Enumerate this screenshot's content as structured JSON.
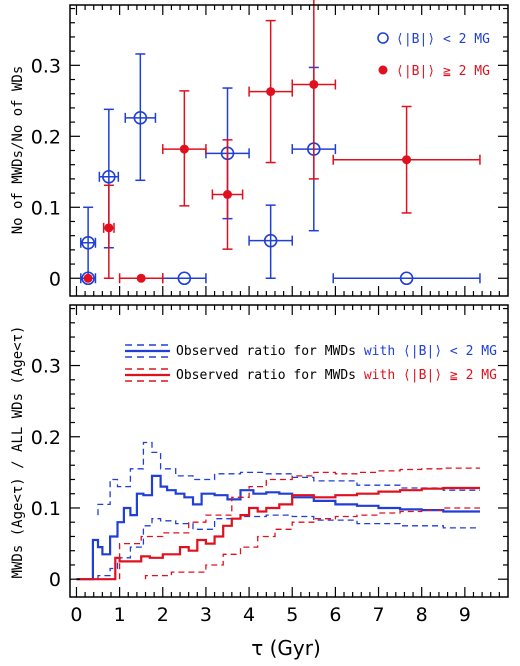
{
  "colors": {
    "blue": "#1f3fd6",
    "red": "#e0101e",
    "axis": "#000000"
  },
  "chart_data": [
    {
      "type": "scatter",
      "ylabel": "No of MWDs/No of WDs",
      "xlim": [
        -0.15,
        10.0
      ],
      "ylim": [
        -0.025,
        0.385
      ],
      "yticks": [
        0,
        0.1,
        0.2,
        0.3
      ],
      "ytick_labels": [
        "0",
        "0.1",
        "0.2",
        "0.3"
      ],
      "legend_placement": "top-right",
      "legend": [
        {
          "label": "⟨|B|⟩ < 2 MG",
          "color": "#1f3fd6",
          "marker": "open-circle"
        },
        {
          "label": "⟨|B|⟩ ≧ 2 MG",
          "color": "#e0101e",
          "marker": "filled-circle"
        }
      ],
      "series": [
        {
          "name": "⟨|B|⟩ < 2 MG",
          "color": "#1f3fd6",
          "marker": "open",
          "points": [
            {
              "x": 0.27,
              "y": 0.0,
              "xerr": [
                0.17,
                0.17
              ],
              "yerr": [
                0.0,
                0.0
              ]
            },
            {
              "x": 0.27,
              "y": 0.05,
              "xerr": [
                0.17,
                0.17
              ],
              "yerr": [
                0.05,
                0.05
              ]
            },
            {
              "x": 0.75,
              "y": 0.143,
              "xerr": [
                0.22,
                0.22
              ],
              "yerr": [
                0.1,
                0.095
              ]
            },
            {
              "x": 1.48,
              "y": 0.226,
              "xerr": [
                0.35,
                0.35
              ],
              "yerr": [
                0.088,
                0.09
              ]
            },
            {
              "x": 2.5,
              "y": 0.0,
              "xerr": [
                0.5,
                0.5
              ],
              "yerr": [
                0.0,
                0.0
              ]
            },
            {
              "x": 3.5,
              "y": 0.176,
              "xerr": [
                0.5,
                0.5
              ],
              "yerr": [
                0.092,
                0.092
              ]
            },
            {
              "x": 4.5,
              "y": 0.053,
              "xerr": [
                0.5,
                0.5
              ],
              "yerr": [
                0.053,
                0.05
              ]
            },
            {
              "x": 5.5,
              "y": 0.182,
              "xerr": [
                0.5,
                0.5
              ],
              "yerr": [
                0.115,
                0.115
              ]
            },
            {
              "x": 7.65,
              "y": 0.0,
              "xerr": [
                1.7,
                1.7
              ],
              "yerr": [
                0.0,
                0.0
              ]
            }
          ]
        },
        {
          "name": "⟨|B|⟩ ≧ 2 MG",
          "color": "#e0101e",
          "marker": "filled",
          "points": [
            {
              "x": 0.27,
              "y": 0.0,
              "xerr": [
                0.0,
                0.0
              ],
              "yerr": [
                0.0,
                0.0
              ]
            },
            {
              "x": 0.75,
              "y": 0.071,
              "xerr": [
                0.12,
                0.12
              ],
              "yerr": [
                0.071,
                0.06
              ]
            },
            {
              "x": 1.5,
              "y": 0.0,
              "xerr": [
                0.5,
                0.5
              ],
              "yerr": [
                0.0,
                0.0
              ]
            },
            {
              "x": 2.5,
              "y": 0.182,
              "xerr": [
                0.5,
                0.5
              ],
              "yerr": [
                0.08,
                0.082
              ]
            },
            {
              "x": 3.5,
              "y": 0.118,
              "xerr": [
                0.35,
                0.35
              ],
              "yerr": [
                0.077,
                0.077
              ]
            },
            {
              "x": 4.5,
              "y": 0.263,
              "xerr": [
                0.5,
                0.5
              ],
              "yerr": [
                0.1,
                0.1
              ]
            },
            {
              "x": 5.5,
              "y": 0.273,
              "xerr": [
                0.5,
                0.5
              ],
              "yerr": [
                0.133,
                0.12
              ]
            },
            {
              "x": 7.65,
              "y": 0.167,
              "xerr": [
                1.7,
                1.7
              ],
              "yerr": [
                0.075,
                0.075
              ]
            }
          ]
        }
      ]
    },
    {
      "type": "line",
      "ylabel": "MWDs (Age<τ) / ALL WDs (Age<τ)",
      "xlabel": "τ (Gyr)",
      "xlim": [
        -0.15,
        10.0
      ],
      "ylim": [
        -0.025,
        0.385
      ],
      "xticks": [
        0,
        1,
        2,
        3,
        4,
        5,
        6,
        7,
        8,
        9
      ],
      "xtick_labels": [
        "0",
        "1",
        "2",
        "3",
        "4",
        "5",
        "6",
        "7",
        "8",
        "9"
      ],
      "yticks": [
        0,
        0.1,
        0.2,
        0.3
      ],
      "ytick_labels": [
        "0",
        "0.1",
        "0.2",
        "0.3"
      ],
      "legend_placement": "top-right",
      "legend": [
        {
          "prefix": "Observed ratio for MWDs ",
          "colored": "with ⟨|B|⟩ < 2 MG",
          "color": "#1f3fd6"
        },
        {
          "prefix": "Observed ratio for MWDs ",
          "colored": "with ⟨|B|⟩ ≧ 2 MG",
          "color": "#e0101e"
        }
      ],
      "series": [
        {
          "name": "with ⟨|B|⟩ < 2 MG",
          "color": "#1f3fd6",
          "role": "observed",
          "x": [
            0,
            0.38,
            0.38,
            0.5,
            0.5,
            0.6,
            0.6,
            0.78,
            0.78,
            0.95,
            0.95,
            1.1,
            1.1,
            1.25,
            1.25,
            1.4,
            1.4,
            1.55,
            1.55,
            1.75,
            1.75,
            1.95,
            1.95,
            2.1,
            2.1,
            2.3,
            2.3,
            2.5,
            2.5,
            2.7,
            2.7,
            2.9,
            2.9,
            3.2,
            3.2,
            3.5,
            3.5,
            3.8,
            3.8,
            4.1,
            4.1,
            4.4,
            4.4,
            4.7,
            4.7,
            5.0,
            5.0,
            5.5,
            5.5,
            6.0,
            6.0,
            6.5,
            6.5,
            7.0,
            7.0,
            7.5,
            7.5,
            8.0,
            8.0,
            8.5,
            8.5,
            9.35
          ],
          "y": [
            0,
            0,
            0.055,
            0.055,
            0.045,
            0.045,
            0.035,
            0.035,
            0.06,
            0.06,
            0.08,
            0.08,
            0.1,
            0.1,
            0.09,
            0.09,
            0.12,
            0.12,
            0.118,
            0.118,
            0.145,
            0.145,
            0.13,
            0.13,
            0.125,
            0.125,
            0.12,
            0.12,
            0.115,
            0.115,
            0.105,
            0.105,
            0.12,
            0.12,
            0.118,
            0.118,
            0.112,
            0.112,
            0.125,
            0.125,
            0.12,
            0.12,
            0.122,
            0.122,
            0.12,
            0.12,
            0.115,
            0.115,
            0.11,
            0.11,
            0.105,
            0.105,
            0.103,
            0.103,
            0.1,
            0.1,
            0.098,
            0.098,
            0.097,
            0.097,
            0.095,
            0.095
          ]
        },
        {
          "name": "blue upper",
          "color": "#1f3fd6",
          "role": "band",
          "x": [
            0.5,
            0.5,
            0.78,
            0.78,
            0.95,
            0.95,
            1.25,
            1.25,
            1.55,
            1.55,
            1.75,
            1.75,
            1.95,
            1.95,
            2.3,
            2.3,
            2.7,
            2.7,
            3.2,
            3.2,
            3.8,
            3.8,
            4.4,
            4.4,
            5.0,
            5.0,
            5.5,
            5.5,
            6.5,
            6.5,
            7.5,
            7.5,
            8.5,
            8.5,
            9.35
          ],
          "y": [
            0.09,
            0.105,
            0.105,
            0.14,
            0.14,
            0.13,
            0.13,
            0.155,
            0.155,
            0.192,
            0.192,
            0.178,
            0.178,
            0.155,
            0.155,
            0.145,
            0.145,
            0.14,
            0.14,
            0.148,
            0.148,
            0.15,
            0.15,
            0.148,
            0.148,
            0.143,
            0.143,
            0.138,
            0.138,
            0.132,
            0.132,
            0.128,
            0.128,
            0.125,
            0.125
          ]
        },
        {
          "name": "blue lower",
          "color": "#1f3fd6",
          "role": "band",
          "x": [
            0.5,
            0.5,
            0.78,
            0.78,
            0.95,
            0.95,
            1.25,
            1.25,
            1.55,
            1.55,
            1.75,
            1.75,
            1.95,
            1.95,
            2.3,
            2.3,
            2.7,
            2.7,
            3.2,
            3.2,
            3.8,
            3.8,
            4.4,
            4.4,
            5.0,
            5.0,
            5.5,
            5.5,
            6.5,
            6.5,
            7.5,
            7.5,
            8.5,
            8.5,
            9.35
          ],
          "y": [
            0.0,
            0.005,
            0.005,
            0.015,
            0.015,
            0.03,
            0.03,
            0.045,
            0.045,
            0.075,
            0.075,
            0.085,
            0.085,
            0.082,
            0.082,
            0.078,
            0.078,
            0.07,
            0.07,
            0.085,
            0.085,
            0.088,
            0.088,
            0.09,
            0.09,
            0.088,
            0.088,
            0.083,
            0.083,
            0.078,
            0.078,
            0.075,
            0.075,
            0.072,
            0.072
          ]
        },
        {
          "name": "with ⟨|B|⟩ ≧ 2 MG",
          "color": "#e0101e",
          "role": "observed",
          "x": [
            0,
            0.9,
            0.9,
            1.0,
            1.0,
            1.5,
            1.5,
            1.7,
            1.7,
            2.0,
            2.0,
            2.4,
            2.4,
            2.6,
            2.6,
            2.8,
            2.8,
            3.0,
            3.0,
            3.2,
            3.2,
            3.4,
            3.4,
            3.6,
            3.6,
            3.8,
            3.8,
            4.0,
            4.0,
            4.2,
            4.2,
            4.4,
            4.4,
            4.7,
            4.7,
            5.0,
            5.0,
            5.5,
            5.5,
            6.0,
            6.0,
            6.5,
            6.5,
            7.0,
            7.0,
            7.5,
            7.5,
            8.0,
            8.0,
            8.5,
            8.5,
            9.35
          ],
          "y": [
            0,
            0,
            0.03,
            0.03,
            0.025,
            0.025,
            0.032,
            0.032,
            0.03,
            0.03,
            0.035,
            0.035,
            0.045,
            0.045,
            0.04,
            0.04,
            0.055,
            0.055,
            0.05,
            0.05,
            0.06,
            0.06,
            0.075,
            0.075,
            0.085,
            0.085,
            0.09,
            0.09,
            0.1,
            0.1,
            0.095,
            0.095,
            0.1,
            0.1,
            0.105,
            0.105,
            0.118,
            0.118,
            0.115,
            0.115,
            0.118,
            0.118,
            0.12,
            0.12,
            0.123,
            0.123,
            0.125,
            0.125,
            0.127,
            0.127,
            0.128,
            0.128
          ]
        },
        {
          "name": "red upper",
          "color": "#e0101e",
          "role": "band",
          "x": [
            1.0,
            1.0,
            1.5,
            1.5,
            2.0,
            2.0,
            2.6,
            2.6,
            3.0,
            3.0,
            3.6,
            3.6,
            4.0,
            4.0,
            4.4,
            4.4,
            5.0,
            5.0,
            5.5,
            5.5,
            6.0,
            6.0,
            6.5,
            6.5,
            7.0,
            7.0,
            7.5,
            7.5,
            8.0,
            8.0,
            8.5,
            8.5,
            9.35
          ],
          "y": [
            0.0,
            0.05,
            0.05,
            0.06,
            0.06,
            0.065,
            0.065,
            0.08,
            0.08,
            0.09,
            0.09,
            0.115,
            0.115,
            0.13,
            0.13,
            0.14,
            0.14,
            0.145,
            0.145,
            0.15,
            0.15,
            0.148,
            0.148,
            0.15,
            0.15,
            0.152,
            0.152,
            0.154,
            0.154,
            0.155,
            0.155,
            0.156,
            0.156
          ]
        },
        {
          "name": "red lower",
          "color": "#e0101e",
          "role": "band",
          "x": [
            1.6,
            1.6,
            2.2,
            2.2,
            3.0,
            3.0,
            3.4,
            3.4,
            3.8,
            3.8,
            4.2,
            4.2,
            4.6,
            4.6,
            5.0,
            5.0,
            5.5,
            5.5,
            6.0,
            6.0,
            6.5,
            6.5,
            7.0,
            7.0,
            7.5,
            7.5,
            8.0,
            8.0,
            8.5,
            8.5,
            9.35
          ],
          "y": [
            0.0,
            0.005,
            0.005,
            0.01,
            0.01,
            0.02,
            0.02,
            0.035,
            0.035,
            0.045,
            0.045,
            0.06,
            0.06,
            0.07,
            0.07,
            0.08,
            0.08,
            0.085,
            0.085,
            0.088,
            0.088,
            0.09,
            0.09,
            0.093,
            0.093,
            0.095,
            0.095,
            0.097,
            0.097,
            0.1,
            0.1
          ]
        }
      ]
    }
  ]
}
